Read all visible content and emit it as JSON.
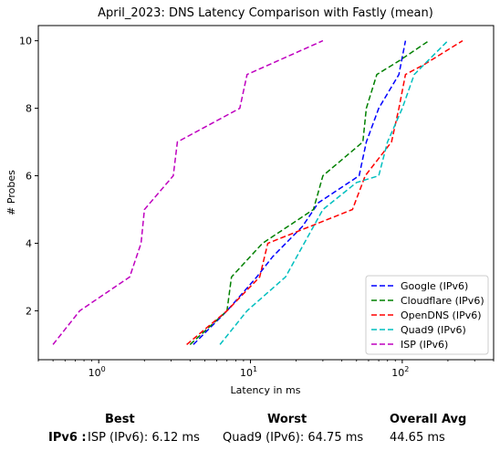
{
  "chart_data": {
    "type": "line",
    "title": "April_2023: DNS Latency Comparison with Fastly (mean)",
    "xlabel": "Latency in ms",
    "ylabel": "# Probes",
    "xscale": "log",
    "xlim": [
      0.4,
      400
    ],
    "ylim": [
      0.55,
      10.45
    ],
    "x_ticks": [
      {
        "value": 1,
        "label": "10^0"
      },
      {
        "value": 10,
        "label": "10^1"
      },
      {
        "value": 100,
        "label": "10^2"
      }
    ],
    "y_ticks": [
      2,
      4,
      6,
      8,
      10
    ],
    "legend_position": "lower-right",
    "grid": false,
    "line_style": "dashed",
    "series": [
      {
        "name": "Google (IPv6)",
        "color": "#0000ff",
        "x": [
          4.2,
          7.0,
          11.0,
          14.0,
          22.0,
          28.0,
          52.0,
          58.0,
          70.0,
          95.0,
          105.0
        ],
        "y": [
          1,
          2,
          3,
          3.6,
          4.5,
          5.2,
          6,
          7,
          8,
          9,
          10
        ]
      },
      {
        "name": "Cloudflare (IPv6)",
        "color": "#008000",
        "x": [
          4.0,
          7.0,
          7.5,
          12.0,
          26.0,
          30.0,
          55.0,
          58.0,
          68.0,
          95.0,
          150.0
        ],
        "y": [
          1,
          2,
          3,
          4,
          5,
          6,
          7,
          8,
          9,
          9.4,
          10
        ]
      },
      {
        "name": "OpenDNS (IPv6)",
        "color": "#ff0000",
        "x": [
          3.8,
          7.0,
          11.5,
          13.0,
          47.0,
          57.0,
          85.0,
          95.0,
          105.0,
          140.0,
          250.0
        ],
        "y": [
          1,
          2,
          3,
          4,
          5,
          6,
          7,
          8,
          9,
          9.3,
          10
        ]
      },
      {
        "name": "Quad9 (IPv6)",
        "color": "#00bfbf",
        "x": [
          6.3,
          9.5,
          17.0,
          30.0,
          50.0,
          70.0,
          80.0,
          100.0,
          120.0,
          200.0
        ],
        "y": [
          1,
          2,
          3,
          5,
          5.8,
          6,
          7,
          8,
          9,
          10
        ]
      },
      {
        "name": "ISP (IPv6)",
        "color": "#bf00bf",
        "x": [
          0.5,
          0.75,
          1.6,
          1.9,
          2.0,
          3.1,
          3.3,
          8.5,
          9.5,
          30.0
        ],
        "y": [
          1,
          2,
          3,
          4,
          5,
          6,
          7,
          8,
          9,
          10
        ]
      }
    ]
  },
  "summary": {
    "headers": {
      "best": "Best",
      "worst": "Worst",
      "overall": "Overall Avg"
    },
    "row_label": "IPv6 :",
    "best": "ISP (IPv6): 6.12 ms",
    "worst": "Quad9 (IPv6): 64.75 ms",
    "overall": "44.65 ms"
  }
}
